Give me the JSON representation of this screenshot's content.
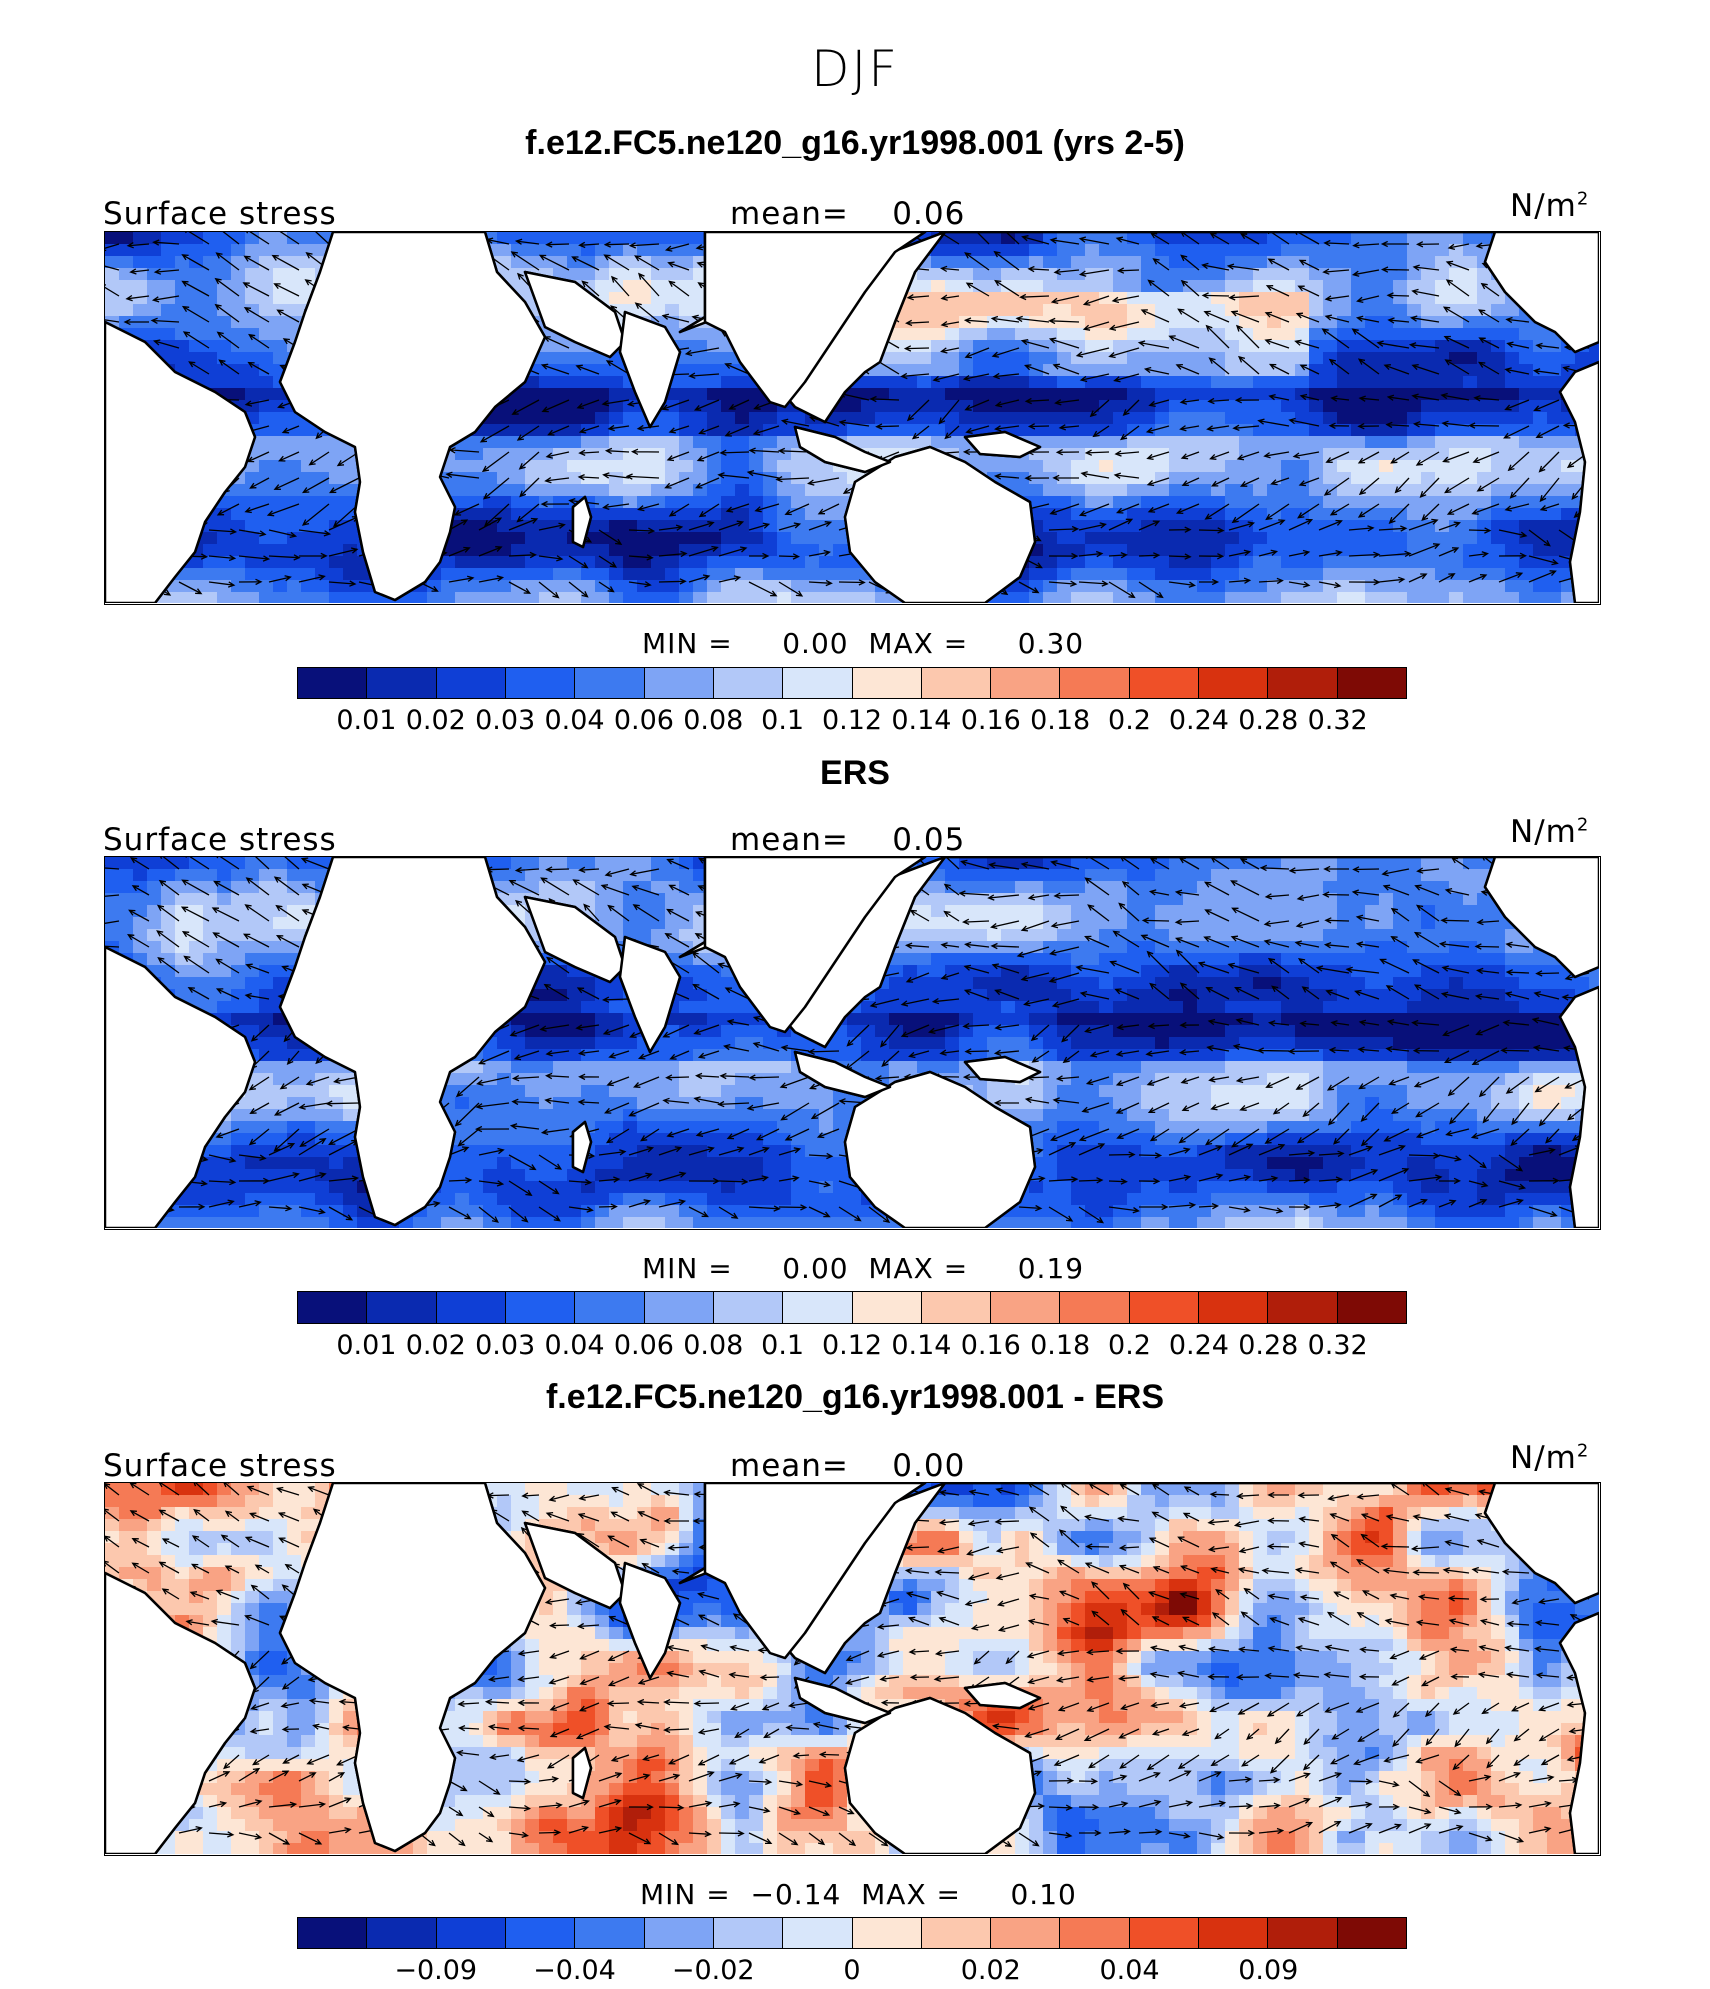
{
  "season": "DJF",
  "panels": [
    {
      "title": "f.e12.FC5.ne120_g16.yr1998.001 (yrs 2-5)",
      "variable": "Surface stress",
      "mean_text": "mean=    0.06",
      "units": "N/m",
      "units_exp": "2",
      "minmax_text": "MIN =     0.00  MAX =     0.30",
      "kind": "sequential",
      "colorbar_ticks": [
        "0.01",
        "0.02",
        "0.03",
        "0.04",
        "0.06",
        "0.08",
        "0.1",
        "0.12",
        "0.14",
        "0.16",
        "0.18",
        "0.2",
        "0.24",
        "0.28",
        "0.32"
      ]
    },
    {
      "title": "ERS",
      "variable": "Surface stress",
      "mean_text": "mean=    0.05",
      "units": "N/m",
      "units_exp": "2",
      "minmax_text": "MIN =     0.00  MAX =     0.19",
      "kind": "sequential",
      "colorbar_ticks": [
        "0.01",
        "0.02",
        "0.03",
        "0.04",
        "0.06",
        "0.08",
        "0.1",
        "0.12",
        "0.14",
        "0.16",
        "0.18",
        "0.2",
        "0.24",
        "0.28",
        "0.32"
      ]
    },
    {
      "title": "f.e12.FC5.ne120_g16.yr1998.001 - ERS",
      "variable": "Surface stress",
      "mean_text": "mean=    0.00",
      "units": "N/m",
      "units_exp": "2",
      "minmax_text": "MIN =  −0.14  MAX =     0.10",
      "kind": "difference",
      "colorbar_ticks": [
        "−0.09",
        "−0.04",
        "−0.02",
        "0",
        "0.02",
        "0.04",
        "0.09"
      ]
    }
  ],
  "colorbar_colors": [
    "#08107a",
    "#0a2ab0",
    "#0f3fd6",
    "#1f5ff0",
    "#3d7af0",
    "#7ea4f5",
    "#b2c8f8",
    "#d8e6fa",
    "#fde6d5",
    "#fcc8ae",
    "#f9a384",
    "#f57a55",
    "#ef5028",
    "#d8320f",
    "#b01e0a",
    "#7e0a05"
  ],
  "land_color": "#ffffff"
}
